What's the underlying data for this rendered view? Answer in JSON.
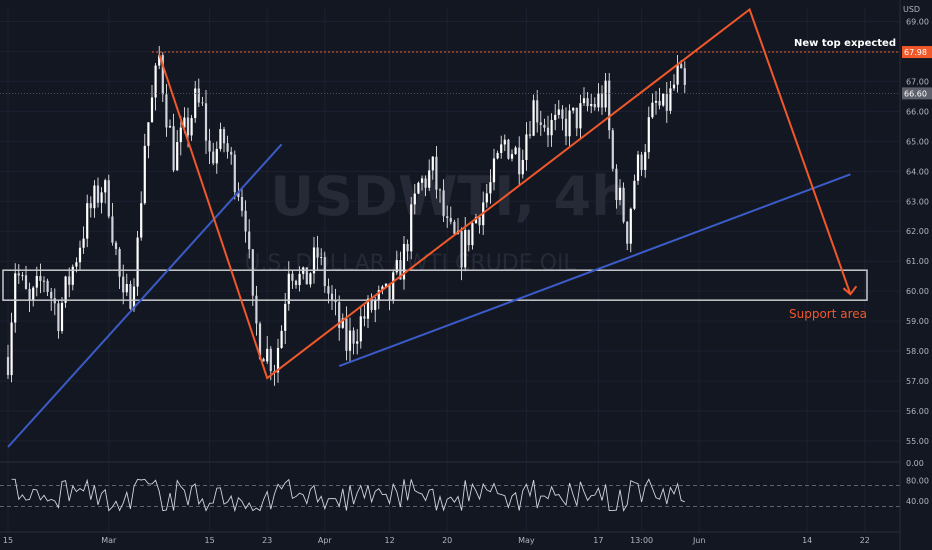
{
  "chart_data": {
    "type": "candlestick",
    "title": "",
    "symbol": "USDWTI",
    "timeframe": "4h",
    "watermark_title": "USDWTI, 4h",
    "watermark_subtitle": "U.S. DOLLAR / WTI CRUDE OIL",
    "currency_label": "USD",
    "price_axis": {
      "min": 54.6,
      "max": 69.45,
      "ticks": [
        "55.00",
        "56.00",
        "57.00",
        "58.00",
        "59.00",
        "60.00",
        "61.00",
        "62.00",
        "63.00",
        "64.00",
        "65.00",
        "66.00",
        "67.00",
        "68.00",
        "69.00"
      ],
      "tick_values": [
        55,
        56,
        57,
        58,
        59,
        60,
        61,
        62,
        63,
        64,
        65,
        66,
        67,
        68,
        69
      ]
    },
    "time_axis": {
      "labels": [
        "15",
        "Mar",
        "15",
        "23",
        "Apr",
        "12",
        "20",
        "May",
        "17",
        "13:00",
        "Jun",
        "14",
        "22"
      ],
      "label_day_index": [
        0,
        14,
        28,
        36,
        44,
        53,
        61,
        72,
        82,
        88,
        96,
        111,
        119
      ]
    },
    "price_labels": [
      {
        "text": "67.98",
        "value": 67.98,
        "color": "#f0582a"
      },
      {
        "text": "66.60",
        "value": 66.6,
        "color": "#5d606b"
      }
    ],
    "price_path": [
      [
        0,
        57.8
      ],
      [
        1,
        60.8
      ],
      [
        3,
        59.5
      ],
      [
        5,
        60.5
      ],
      [
        7,
        59.2
      ],
      [
        9,
        60.8
      ],
      [
        11,
        62.5
      ],
      [
        13,
        63.5
      ],
      [
        14,
        63.0
      ],
      [
        16,
        59.5
      ],
      [
        17,
        60.0
      ],
      [
        18,
        61.5
      ],
      [
        19,
        65.0
      ],
      [
        20,
        66.3
      ],
      [
        21,
        67.8
      ],
      [
        22,
        66.0
      ],
      [
        23,
        64.5
      ],
      [
        25,
        65.5
      ],
      [
        26,
        66.3
      ],
      [
        27,
        66.0
      ],
      [
        28,
        64.5
      ],
      [
        30,
        65.0
      ],
      [
        32,
        63.5
      ],
      [
        33,
        62.5
      ],
      [
        34,
        59.3
      ],
      [
        35,
        58.3
      ],
      [
        37,
        57.6
      ],
      [
        38,
        58.8
      ],
      [
        39,
        61.0
      ],
      [
        41,
        60.2
      ],
      [
        43,
        61.2
      ],
      [
        45,
        59.5
      ],
      [
        47,
        58.2
      ],
      [
        49,
        59.0
      ],
      [
        51,
        59.6
      ],
      [
        53,
        59.8
      ],
      [
        55,
        61.2
      ],
      [
        57,
        63.5
      ],
      [
        59,
        64.0
      ],
      [
        61,
        62.0
      ],
      [
        63,
        61.3
      ],
      [
        65,
        62.5
      ],
      [
        67,
        63.5
      ],
      [
        69,
        65.0
      ],
      [
        71,
        64.5
      ],
      [
        73,
        66.2
      ],
      [
        75,
        65.5
      ],
      [
        77,
        65.5
      ],
      [
        79,
        65.8
      ],
      [
        81,
        66.2
      ],
      [
        83,
        66.5
      ],
      [
        84,
        64.0
      ],
      [
        85,
        63.0
      ],
      [
        86,
        62.0
      ],
      [
        87,
        63.8
      ],
      [
        88,
        64.5
      ],
      [
        89,
        65.5
      ],
      [
        90,
        66.2
      ],
      [
        91,
        66.0
      ],
      [
        92,
        66.5
      ],
      [
        93,
        67.2
      ],
      [
        94,
        66.6
      ]
    ],
    "rsi": {
      "ticks": [
        "0.00",
        "40.00",
        "80.00"
      ],
      "tick_values": [
        0,
        40,
        80
      ],
      "range": [
        0,
        100
      ],
      "bands": [
        30,
        70
      ]
    },
    "annotations": [
      {
        "text": "New top expected",
        "color": "#ffffff"
      },
      {
        "text": "Support area",
        "color": "#f0582a"
      }
    ],
    "support_zone": {
      "from": 59.7,
      "to": 60.7
    },
    "trend_lines": [
      {
        "color": "#3b5bc7",
        "from": [
          0,
          54.8
        ],
        "to": [
          38,
          64.9
        ]
      },
      {
        "color": "#3b5bc7",
        "from": [
          46,
          57.5
        ],
        "to": [
          117,
          63.9
        ]
      }
    ],
    "projection_path": {
      "color": "#f0582a",
      "points": [
        [
          21,
          67.9
        ],
        [
          36,
          57.1
        ],
        [
          103,
          69.4
        ],
        [
          117,
          59.9
        ]
      ]
    },
    "target_level": {
      "value": 67.98,
      "from_day": 20,
      "color": "#f0582a"
    },
    "colors": {
      "background": "#131722",
      "candle": "#ffffff",
      "grid": "#1c2030",
      "axis_text": "#b2b5be",
      "accent": "#f0582a",
      "trend": "#3b5bc7"
    }
  }
}
